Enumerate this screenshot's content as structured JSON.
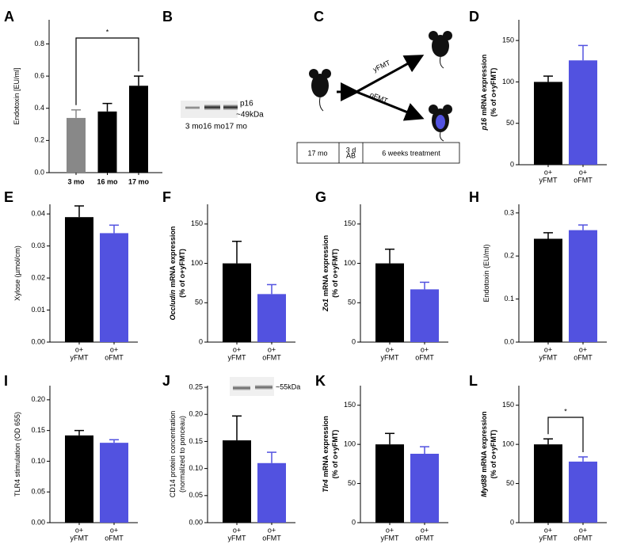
{
  "chart_data": [
    {
      "type": "bar",
      "panel": "A",
      "ylabel": "Endotoxin [EU/ml]",
      "categories": [
        "3 mo",
        "16 mo",
        "17 mo"
      ],
      "values": [
        0.34,
        0.38,
        0.54
      ],
      "errors": [
        0.05,
        0.05,
        0.06
      ],
      "colors": [
        "#888888",
        "#000000",
        "#000000"
      ],
      "ylim": [
        0,
        0.95
      ],
      "yticks": [
        {
          "value": 0,
          "label": "0.0"
        },
        0.2,
        0.4,
        0.6,
        0.8
      ],
      "annotation": "*"
    },
    {
      "type": "blot",
      "panel": "B",
      "label": "p16",
      "size": "~49kDa",
      "lanes": [
        "3 mo",
        "16 mo",
        "17 mo"
      ]
    },
    {
      "type": "diagram",
      "panel": "C",
      "arms": [
        "yFMT",
        "oFMT"
      ],
      "timeline": [
        "17 mo",
        [
          "3 d",
          "AB"
        ],
        "6 weeks treatment"
      ]
    },
    {
      "type": "bar",
      "panel": "D",
      "gene": "p16",
      "ylabel": [
        "mRNA expression",
        "(% of o+yFMT)"
      ],
      "categories": [
        [
          "o+",
          "yFMT"
        ],
        [
          "o+",
          "oFMT"
        ]
      ],
      "values": [
        100,
        126
      ],
      "errors": [
        7,
        18
      ],
      "colors": [
        "#000000",
        "#5252e0"
      ],
      "ylim": [
        0,
        175
      ],
      "yticks": [
        0,
        50,
        100,
        150
      ]
    },
    {
      "type": "bar",
      "panel": "E",
      "ylabel": "Xylose (µmol/cm)",
      "categories": [
        [
          "o+",
          "yFMT"
        ],
        [
          "o+",
          "oFMT"
        ]
      ],
      "values": [
        0.039,
        0.034
      ],
      "errors": [
        0.0035,
        0.0025
      ],
      "colors": [
        "#000000",
        "#5252e0"
      ],
      "ylim": [
        0,
        0.043
      ],
      "yticks": [
        {
          "value": 0,
          "label": "0.00"
        },
        0.01,
        0.02,
        0.03,
        0.04
      ]
    },
    {
      "type": "bar",
      "panel": "F",
      "gene": "Occludin",
      "ylabel": [
        "mRNA expression",
        "(% of o+yFMT)"
      ],
      "categories": [
        [
          "o+",
          "yFMT"
        ],
        [
          "o+",
          "oFMT"
        ]
      ],
      "values": [
        100,
        61
      ],
      "errors": [
        28,
        12
      ],
      "colors": [
        "#000000",
        "#5252e0"
      ],
      "ylim": [
        0,
        175
      ],
      "yticks": [
        0,
        50,
        100,
        150
      ]
    },
    {
      "type": "bar",
      "panel": "G",
      "gene": "Zo1",
      "ylabel": [
        "mRNA expression",
        "(% of o+yFMT)"
      ],
      "categories": [
        [
          "o+",
          "yFMT"
        ],
        [
          "o+",
          "oFMT"
        ]
      ],
      "values": [
        100,
        67
      ],
      "errors": [
        18,
        9
      ],
      "colors": [
        "#000000",
        "#5252e0"
      ],
      "ylim": [
        0,
        175
      ],
      "yticks": [
        0,
        50,
        100,
        150
      ]
    },
    {
      "type": "bar",
      "panel": "H",
      "ylabel": "Endotoxin (EU/ml)",
      "categories": [
        [
          "o+",
          "yFMT"
        ],
        [
          "o+",
          "oFMT"
        ]
      ],
      "values": [
        0.24,
        0.26
      ],
      "errors": [
        0.014,
        0.012
      ],
      "colors": [
        "#000000",
        "#5252e0"
      ],
      "ylim": [
        0,
        0.32
      ],
      "yticks": [
        {
          "value": 0,
          "label": "0.0"
        },
        0.1,
        0.2,
        0.3
      ]
    },
    {
      "type": "bar",
      "panel": "I",
      "ylabel": "TLR4 stimulation (OD 655)",
      "categories": [
        [
          "o+",
          "yFMT"
        ],
        [
          "o+",
          "oFMT"
        ]
      ],
      "values": [
        0.142,
        0.13
      ],
      "errors": [
        0.008,
        0.005
      ],
      "colors": [
        "#000000",
        "#5252e0"
      ],
      "ylim": [
        0,
        0.223
      ],
      "yticks": [
        {
          "value": 0,
          "label": "0.00"
        },
        0.05,
        {
          "value": 0.1,
          "label": "0.10"
        },
        0.15,
        {
          "value": 0.2,
          "label": "0.20"
        }
      ]
    },
    {
      "type": "bar",
      "panel": "J",
      "ylabel": [
        "CD14 protein concentration",
        "(normalized to ponceau)"
      ],
      "inset_label": "~55kDa",
      "categories": [
        [
          "o+",
          "yFMT"
        ],
        [
          "o+",
          "oFMT"
        ]
      ],
      "values": [
        0.152,
        0.11
      ],
      "errors": [
        0.045,
        0.02
      ],
      "colors": [
        "#000000",
        "#5252e0"
      ],
      "ylim": [
        0,
        0.253
      ],
      "yticks": [
        {
          "value": 0,
          "label": "0.00"
        },
        0.05,
        {
          "value": 0.1,
          "label": "0.10"
        },
        0.15,
        {
          "value": 0.2,
          "label": "0.20"
        },
        0.25
      ]
    },
    {
      "type": "bar",
      "panel": "K",
      "gene": "Tlr4",
      "ylabel": [
        "mRNA expression",
        "(% of o+yFMT)"
      ],
      "categories": [
        [
          "o+",
          "yFMT"
        ],
        [
          "o+",
          "oFMT"
        ]
      ],
      "values": [
        100,
        88
      ],
      "errors": [
        14,
        9
      ],
      "colors": [
        "#000000",
        "#5252e0"
      ],
      "ylim": [
        0,
        175
      ],
      "yticks": [
        0,
        50,
        100,
        150
      ]
    },
    {
      "type": "bar",
      "panel": "L",
      "gene": "Myd88",
      "ylabel": [
        "mRNA expression",
        "(% of o+yFMT)"
      ],
      "categories": [
        [
          "o+",
          "yFMT"
        ],
        [
          "o+",
          "oFMT"
        ]
      ],
      "values": [
        100,
        78
      ],
      "errors": [
        7,
        6
      ],
      "colors": [
        "#000000",
        "#5252e0"
      ],
      "ylim": [
        0,
        175
      ],
      "yticks": [
        0,
        50,
        100,
        150
      ],
      "annotation": "*"
    }
  ]
}
